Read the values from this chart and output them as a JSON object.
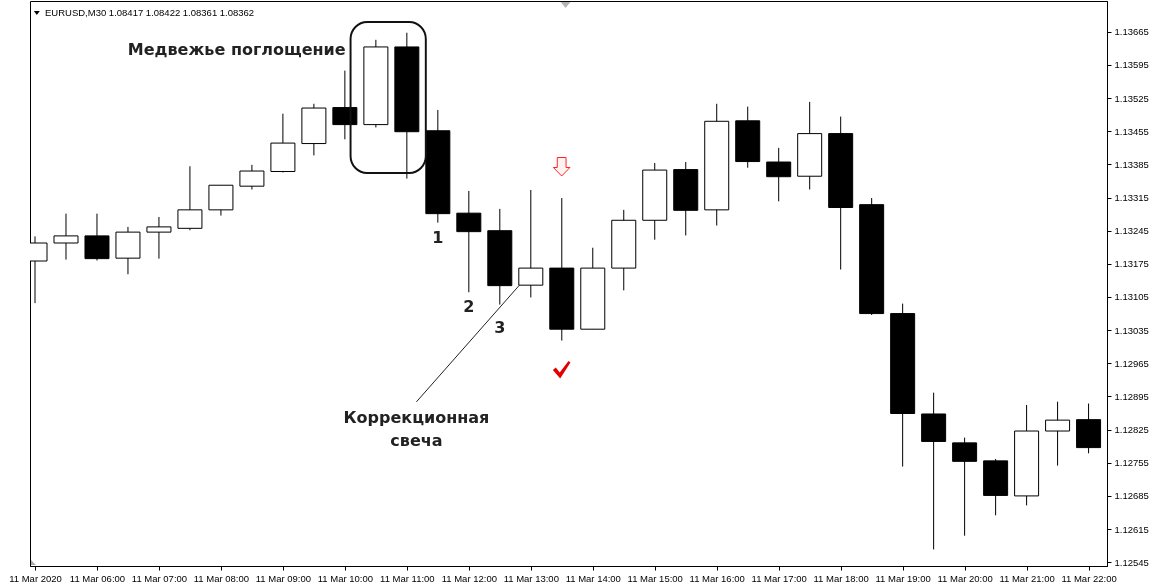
{
  "chart_data": {
    "type": "candlestick",
    "title": "EURUSD,M30 1.08417 1.08422 1.08361 1.08362",
    "x": [
      "2020-03-11T05:00",
      "2020-03-11T05:30",
      "2020-03-11T06:00",
      "2020-03-11T06:30",
      "2020-03-11T07:00",
      "2020-03-11T07:30",
      "2020-03-11T08:00",
      "2020-03-11T08:30",
      "2020-03-11T09:00",
      "2020-03-11T09:30",
      "2020-03-11T10:00",
      "2020-03-11T10:30",
      "2020-03-11T11:00",
      "2020-03-11T11:30",
      "2020-03-11T12:00",
      "2020-03-11T12:30",
      "2020-03-11T13:00",
      "2020-03-11T13:30",
      "2020-03-11T14:00",
      "2020-03-11T14:30",
      "2020-03-11T15:00",
      "2020-03-11T15:30",
      "2020-03-11T16:00",
      "2020-03-11T16:30",
      "2020-03-11T17:00",
      "2020-03-11T17:30",
      "2020-03-11T18:00",
      "2020-03-11T18:30",
      "2020-03-11T19:00",
      "2020-03-11T19:30",
      "2020-03-11T20:00",
      "2020-03-11T20:30",
      "2020-03-11T21:00",
      "2020-03-11T21:30",
      "2020-03-11T22:00"
    ],
    "ohlc": [
      [
        1.13181,
        1.13233,
        1.13092,
        1.13219
      ],
      [
        1.13219,
        1.13281,
        1.13184,
        1.13234
      ],
      [
        1.13234,
        1.13281,
        1.13182,
        1.13186
      ],
      [
        1.13187,
        1.13253,
        1.13153,
        1.13242
      ],
      [
        1.13242,
        1.13274,
        1.13186,
        1.13253
      ],
      [
        1.1325,
        1.13381,
        1.13246,
        1.13289
      ],
      [
        1.13289,
        1.13341,
        1.13277,
        1.13341
      ],
      [
        1.13339,
        1.13384,
        1.13332,
        1.13371
      ],
      [
        1.1337,
        1.13492,
        1.13368,
        1.1343
      ],
      [
        1.13429,
        1.13513,
        1.13404,
        1.13504
      ],
      [
        1.13505,
        1.13583,
        1.13438,
        1.13469
      ],
      [
        1.13469,
        1.13648,
        1.13463,
        1.13633
      ],
      [
        1.13633,
        1.13663,
        1.13355,
        1.13454
      ],
      [
        1.13456,
        1.135,
        1.13262,
        1.13281
      ],
      [
        1.13282,
        1.13329,
        1.13115,
        1.13243
      ],
      [
        1.13245,
        1.13291,
        1.13089,
        1.13129
      ],
      [
        1.1313,
        1.13331,
        1.13104,
        1.13166
      ],
      [
        1.13166,
        1.13314,
        1.13013,
        1.13037
      ],
      [
        1.13037,
        1.13209,
        1.13037,
        1.13166
      ],
      [
        1.13166,
        1.13289,
        1.13119,
        1.13267
      ],
      [
        1.13267,
        1.13388,
        1.13226,
        1.13373
      ],
      [
        1.13374,
        1.1339,
        1.13235,
        1.13288
      ],
      [
        1.13289,
        1.13513,
        1.13256,
        1.13476
      ],
      [
        1.13477,
        1.13507,
        1.13378,
        1.13391
      ],
      [
        1.1339,
        1.1342,
        1.13307,
        1.13359
      ],
      [
        1.1336,
        1.13517,
        1.13332,
        1.1345
      ],
      [
        1.1345,
        1.13486,
        1.13163,
        1.13294
      ],
      [
        1.133,
        1.13314,
        1.13067,
        1.1307
      ],
      [
        1.1307,
        1.13091,
        1.12747,
        1.12859
      ],
      [
        1.12858,
        1.12903,
        1.12572,
        1.128
      ],
      [
        1.12797,
        1.12808,
        1.12601,
        1.12758
      ],
      [
        1.12759,
        1.12763,
        1.12644,
        1.12686
      ],
      [
        1.12685,
        1.12877,
        1.12665,
        1.12822
      ],
      [
        1.12822,
        1.12884,
        1.12749,
        1.12845
      ],
      [
        1.12846,
        1.1288,
        1.12775,
        1.12787
      ]
    ],
    "color": "#000000",
    "colors": [
      "#ffffff",
      "#ffffff",
      "#000000",
      "#ffffff",
      "#ffffff",
      "#ffffff",
      "#ffffff",
      "#ffffff",
      "#ffffff",
      "#ffffff",
      "#000000",
      "#ffffff",
      "#000000",
      "#000000",
      "#000000",
      "#000000",
      "#ffffff",
      "#000000",
      "#ffffff",
      "#ffffff",
      "#ffffff",
      "#000000",
      "#ffffff",
      "#000000",
      "#000000",
      "#ffffff",
      "#000000",
      "#000000",
      "#000000",
      "#000000",
      "#000000",
      "#000000",
      "#ffffff",
      "#ffffff",
      "#000000"
    ],
    "xlim": [
      "2020-03-11T05:00",
      "2020-03-11T22:13"
    ],
    "xticks": [
      {
        "value": "2020-03-11T05:00",
        "label": "11 Mar 2020"
      },
      {
        "value": "2020-03-11T06:00",
        "label": "11 Mar 06:00"
      },
      {
        "value": "2020-03-11T07:00",
        "label": "11 Mar 07:00"
      },
      {
        "value": "2020-03-11T08:00",
        "label": "11 Mar 08:00"
      },
      {
        "value": "2020-03-11T09:00",
        "label": "11 Mar 09:00"
      },
      {
        "value": "2020-03-11T10:00",
        "label": "11 Mar 10:00"
      },
      {
        "value": "2020-03-11T11:00",
        "label": "11 Mar 11:00"
      },
      {
        "value": "2020-03-11T12:00",
        "label": "11 Mar 12:00"
      },
      {
        "value": "2020-03-11T13:00",
        "label": "11 Mar 13:00"
      },
      {
        "value": "2020-03-11T14:00",
        "label": "11 Mar 14:00"
      },
      {
        "value": "2020-03-11T15:00",
        "label": "11 Mar 15:00"
      },
      {
        "value": "2020-03-11T16:00",
        "label": "11 Mar 16:00"
      },
      {
        "value": "2020-03-11T17:00",
        "label": "11 Mar 17:00"
      },
      {
        "value": "2020-03-11T18:00",
        "label": "11 Mar 18:00"
      },
      {
        "value": "2020-03-11T19:00",
        "label": "11 Mar 19:00"
      },
      {
        "value": "2020-03-11T20:00",
        "label": "11 Mar 20:00"
      },
      {
        "value": "2020-03-11T21:00",
        "label": "11 Mar 21:00"
      },
      {
        "value": "2020-03-11T22:00",
        "label": "11 Mar 22:00"
      }
    ],
    "ylim": [
      1.12537,
      1.1373
    ],
    "yticks": [
      1.12545,
      1.12615,
      1.12685,
      1.12755,
      1.12825,
      1.12895,
      1.12965,
      1.13035,
      1.13105,
      1.13175,
      1.13245,
      1.13315,
      1.13385,
      1.13455,
      1.13525,
      1.13595,
      1.13665
    ],
    "annotations": [
      "Медвежье поглощение",
      {
        "text": "1",
        "x": "2020-03-11T11:30",
        "y": 1.13262
      },
      {
        "text": "2",
        "x": "2020-03-11T12:00",
        "y": 1.13115
      },
      {
        "text": "3",
        "x": "2020-03-11T12:30",
        "y": 1.13089
      },
      {
        "text": "Коррекционная\nсвеча",
        "x": "2020-03-11T12:49",
        "y": 1.1313
      }
    ]
  }
}
